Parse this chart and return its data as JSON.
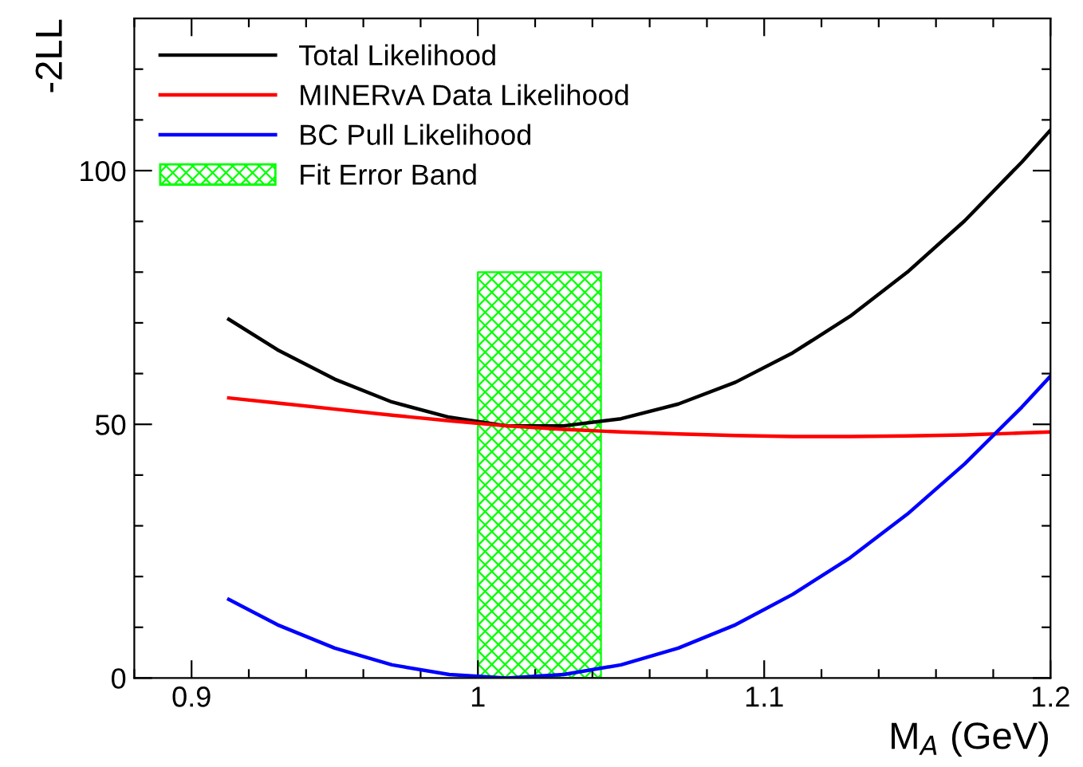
{
  "chart_data": {
    "type": "line",
    "xlabel": "M$_{A}$ (GeV)",
    "ylabel": "-2LL",
    "legend": "top left",
    "grid": false,
    "line_style": "solid",
    "marker": "none",
    "x": [
      0.913,
      0.93,
      0.95,
      0.97,
      0.99,
      1.01,
      1.03,
      1.05,
      1.07,
      1.09,
      1.11,
      1.13,
      1.15,
      1.17,
      1.19,
      1.2
    ],
    "series": [
      {
        "name": "Total Likelihood",
        "color": "#000000",
        "values": [
          70.7,
          64.7,
          58.9,
          54.4,
          51.4,
          49.7,
          49.7,
          51.1,
          54.0,
          58.3,
          64.1,
          71.3,
          80.0,
          90.1,
          101.7,
          108.0
        ]
      },
      {
        "name": "MINERvA Data Likelihood",
        "color": "#ff0000",
        "values": [
          55.2,
          54.2,
          53.0,
          51.8,
          50.7,
          49.7,
          49.0,
          48.5,
          48.1,
          47.8,
          47.6,
          47.6,
          47.7,
          47.9,
          48.3,
          48.5
        ]
      },
      {
        "name": "BC Pull Likelihood",
        "color": "#0000ff",
        "values": [
          15.5,
          10.5,
          5.9,
          2.6,
          0.7,
          0,
          0.7,
          2.6,
          5.9,
          10.5,
          16.5,
          23.7,
          32.3,
          42.2,
          53.4,
          59.5
        ]
      },
      {
        "name": "Fit Error Band",
        "type": "area",
        "color": "#00ff00",
        "x": [
          1.0,
          1.043
        ],
        "values": [
          80,
          80
        ]
      }
    ],
    "xlim": [
      0.88,
      1.2
    ],
    "xticks": [
      {
        "value": 0.88,
        "label": null
      },
      0.9,
      {
        "value": 0.92,
        "label": null
      },
      {
        "value": 0.94,
        "label": null
      },
      {
        "value": 0.96,
        "label": null
      },
      {
        "value": 0.98,
        "label": null
      },
      {
        "value": 1.0,
        "label": "1"
      },
      {
        "value": 1.02,
        "label": null
      },
      {
        "value": 1.04,
        "label": null
      },
      {
        "value": 1.06,
        "label": null
      },
      {
        "value": 1.08,
        "label": null
      },
      1.1,
      {
        "value": 1.12,
        "label": null
      },
      {
        "value": 1.14,
        "label": null
      },
      {
        "value": 1.16,
        "label": null
      },
      {
        "value": 1.18,
        "label": null
      },
      1.2
    ],
    "ylim": [
      0,
      130
    ],
    "yticks": [
      0,
      {
        "value": 10,
        "label": null
      },
      {
        "value": 20,
        "label": null
      },
      {
        "value": 30,
        "label": null
      },
      {
        "value": 40,
        "label": null
      },
      50,
      {
        "value": 60,
        "label": null
      },
      {
        "value": 70,
        "label": null
      },
      {
        "value": 80,
        "label": null
      },
      {
        "value": 90,
        "label": null
      },
      100,
      {
        "value": 110,
        "label": null
      },
      {
        "value": 120,
        "label": null
      }
    ]
  }
}
